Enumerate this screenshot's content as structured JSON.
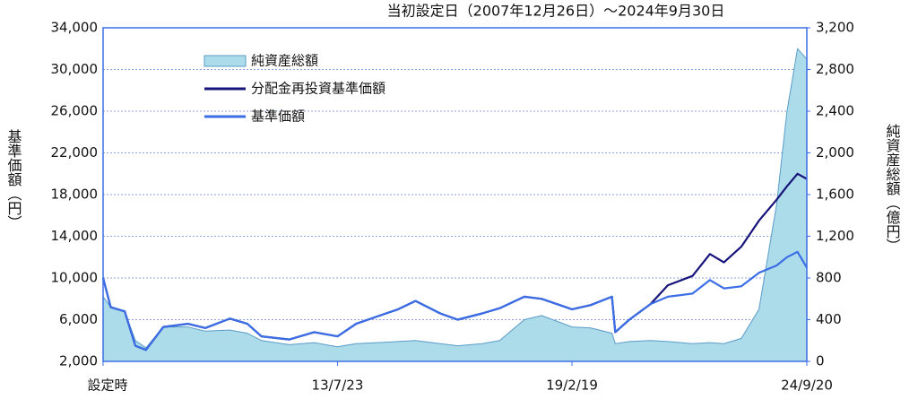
{
  "chart_data": {
    "type": "line",
    "title": "当初設定日（2007年12月26日）～2024年9月30日",
    "y_label": "基準価額（円）",
    "y2_label": "純資産総額（億円）",
    "x": [
      "2007-12-26",
      "2008-03",
      "2008-07",
      "2008-10",
      "2009-01",
      "2009-06",
      "2010-01",
      "2010-06",
      "2011-01",
      "2011-06",
      "2011-10",
      "2012-06",
      "2013-01",
      "2013-07-23",
      "2014-01",
      "2014-07",
      "2015-01",
      "2015-06",
      "2016-01",
      "2016-06",
      "2017-01",
      "2017-06",
      "2018-01",
      "2018-06",
      "2019-02-19",
      "2019-08",
      "2020-02",
      "2020-03",
      "2020-07",
      "2021-01",
      "2021-06",
      "2022-01",
      "2022-06",
      "2022-10",
      "2023-03",
      "2023-08",
      "2024-01",
      "2024-04",
      "2024-07",
      "2024-09-20"
    ],
    "series": [
      {
        "name": "純資産総額",
        "type": "area",
        "axis": "y2",
        "color": "#acdbe9",
        "values": [
          620,
          520,
          480,
          200,
          130,
          330,
          330,
          290,
          300,
          270,
          200,
          160,
          180,
          140,
          170,
          180,
          190,
          200,
          170,
          150,
          170,
          200,
          400,
          440,
          330,
          320,
          270,
          170,
          190,
          200,
          190,
          170,
          180,
          170,
          220,
          500,
          1500,
          2400,
          3000,
          2900
        ]
      },
      {
        "name": "分配金再投資基準価額",
        "type": "line",
        "color": "#16147a",
        "values": [
          10000,
          7200,
          6800,
          3500,
          3100,
          5300,
          5600,
          5200,
          6100,
          5600,
          4400,
          4100,
          4800,
          4400,
          5600,
          6300,
          7000,
          7800,
          6600,
          6000,
          6600,
          7100,
          8200,
          8000,
          7000,
          7400,
          8200,
          4800,
          6000,
          7500,
          9300,
          10200,
          12300,
          11500,
          13000,
          15500,
          17500,
          18800,
          20000,
          19500
        ]
      },
      {
        "name": "基準価額",
        "type": "line",
        "color": "#3b6ee6",
        "values": [
          10000,
          7200,
          6800,
          3500,
          3100,
          5300,
          5600,
          5200,
          6100,
          5600,
          4400,
          4100,
          4800,
          4400,
          5600,
          6300,
          7000,
          7800,
          6600,
          6000,
          6600,
          7100,
          8200,
          8000,
          7000,
          7400,
          8200,
          4800,
          6000,
          7500,
          8200,
          8500,
          9800,
          9000,
          9200,
          10500,
          11200,
          12000,
          12500,
          11000
        ]
      }
    ],
    "xlim": [
      "2007-12-26",
      "2024-09-20"
    ],
    "xticks": [
      {
        "value": "2007-12-26",
        "label": "設定時"
      },
      {
        "value": "2013-07-23",
        "label": "13/7/23"
      },
      {
        "value": "2019-02-19",
        "label": "19/2/19"
      },
      {
        "value": "2024-09-20",
        "label": "24/9/20"
      }
    ],
    "ylim": [
      2000,
      34000
    ],
    "yticks": [
      {
        "value": 2000,
        "label": "2,000"
      },
      {
        "value": 6000,
        "label": "6,000"
      },
      {
        "value": 10000,
        "label": "10,000"
      },
      {
        "value": 14000,
        "label": "14,000"
      },
      {
        "value": 18000,
        "label": "18,000"
      },
      {
        "value": 22000,
        "label": "22,000"
      },
      {
        "value": 26000,
        "label": "26,000"
      },
      {
        "value": 30000,
        "label": "30,000"
      },
      {
        "value": 34000,
        "label": "34,000"
      }
    ],
    "y2lim": [
      0,
      3200
    ],
    "y2ticks": [
      0,
      400,
      800,
      {
        "value": 1200,
        "label": "1,200"
      },
      {
        "value": 1600,
        "label": "1,600"
      },
      {
        "value": 2000,
        "label": "2,000"
      },
      {
        "value": 2400,
        "label": "2,400"
      },
      {
        "value": 2800,
        "label": "2,800"
      },
      {
        "value": 3200,
        "label": "3,200"
      }
    ],
    "grid": true,
    "legend": "upper left"
  }
}
